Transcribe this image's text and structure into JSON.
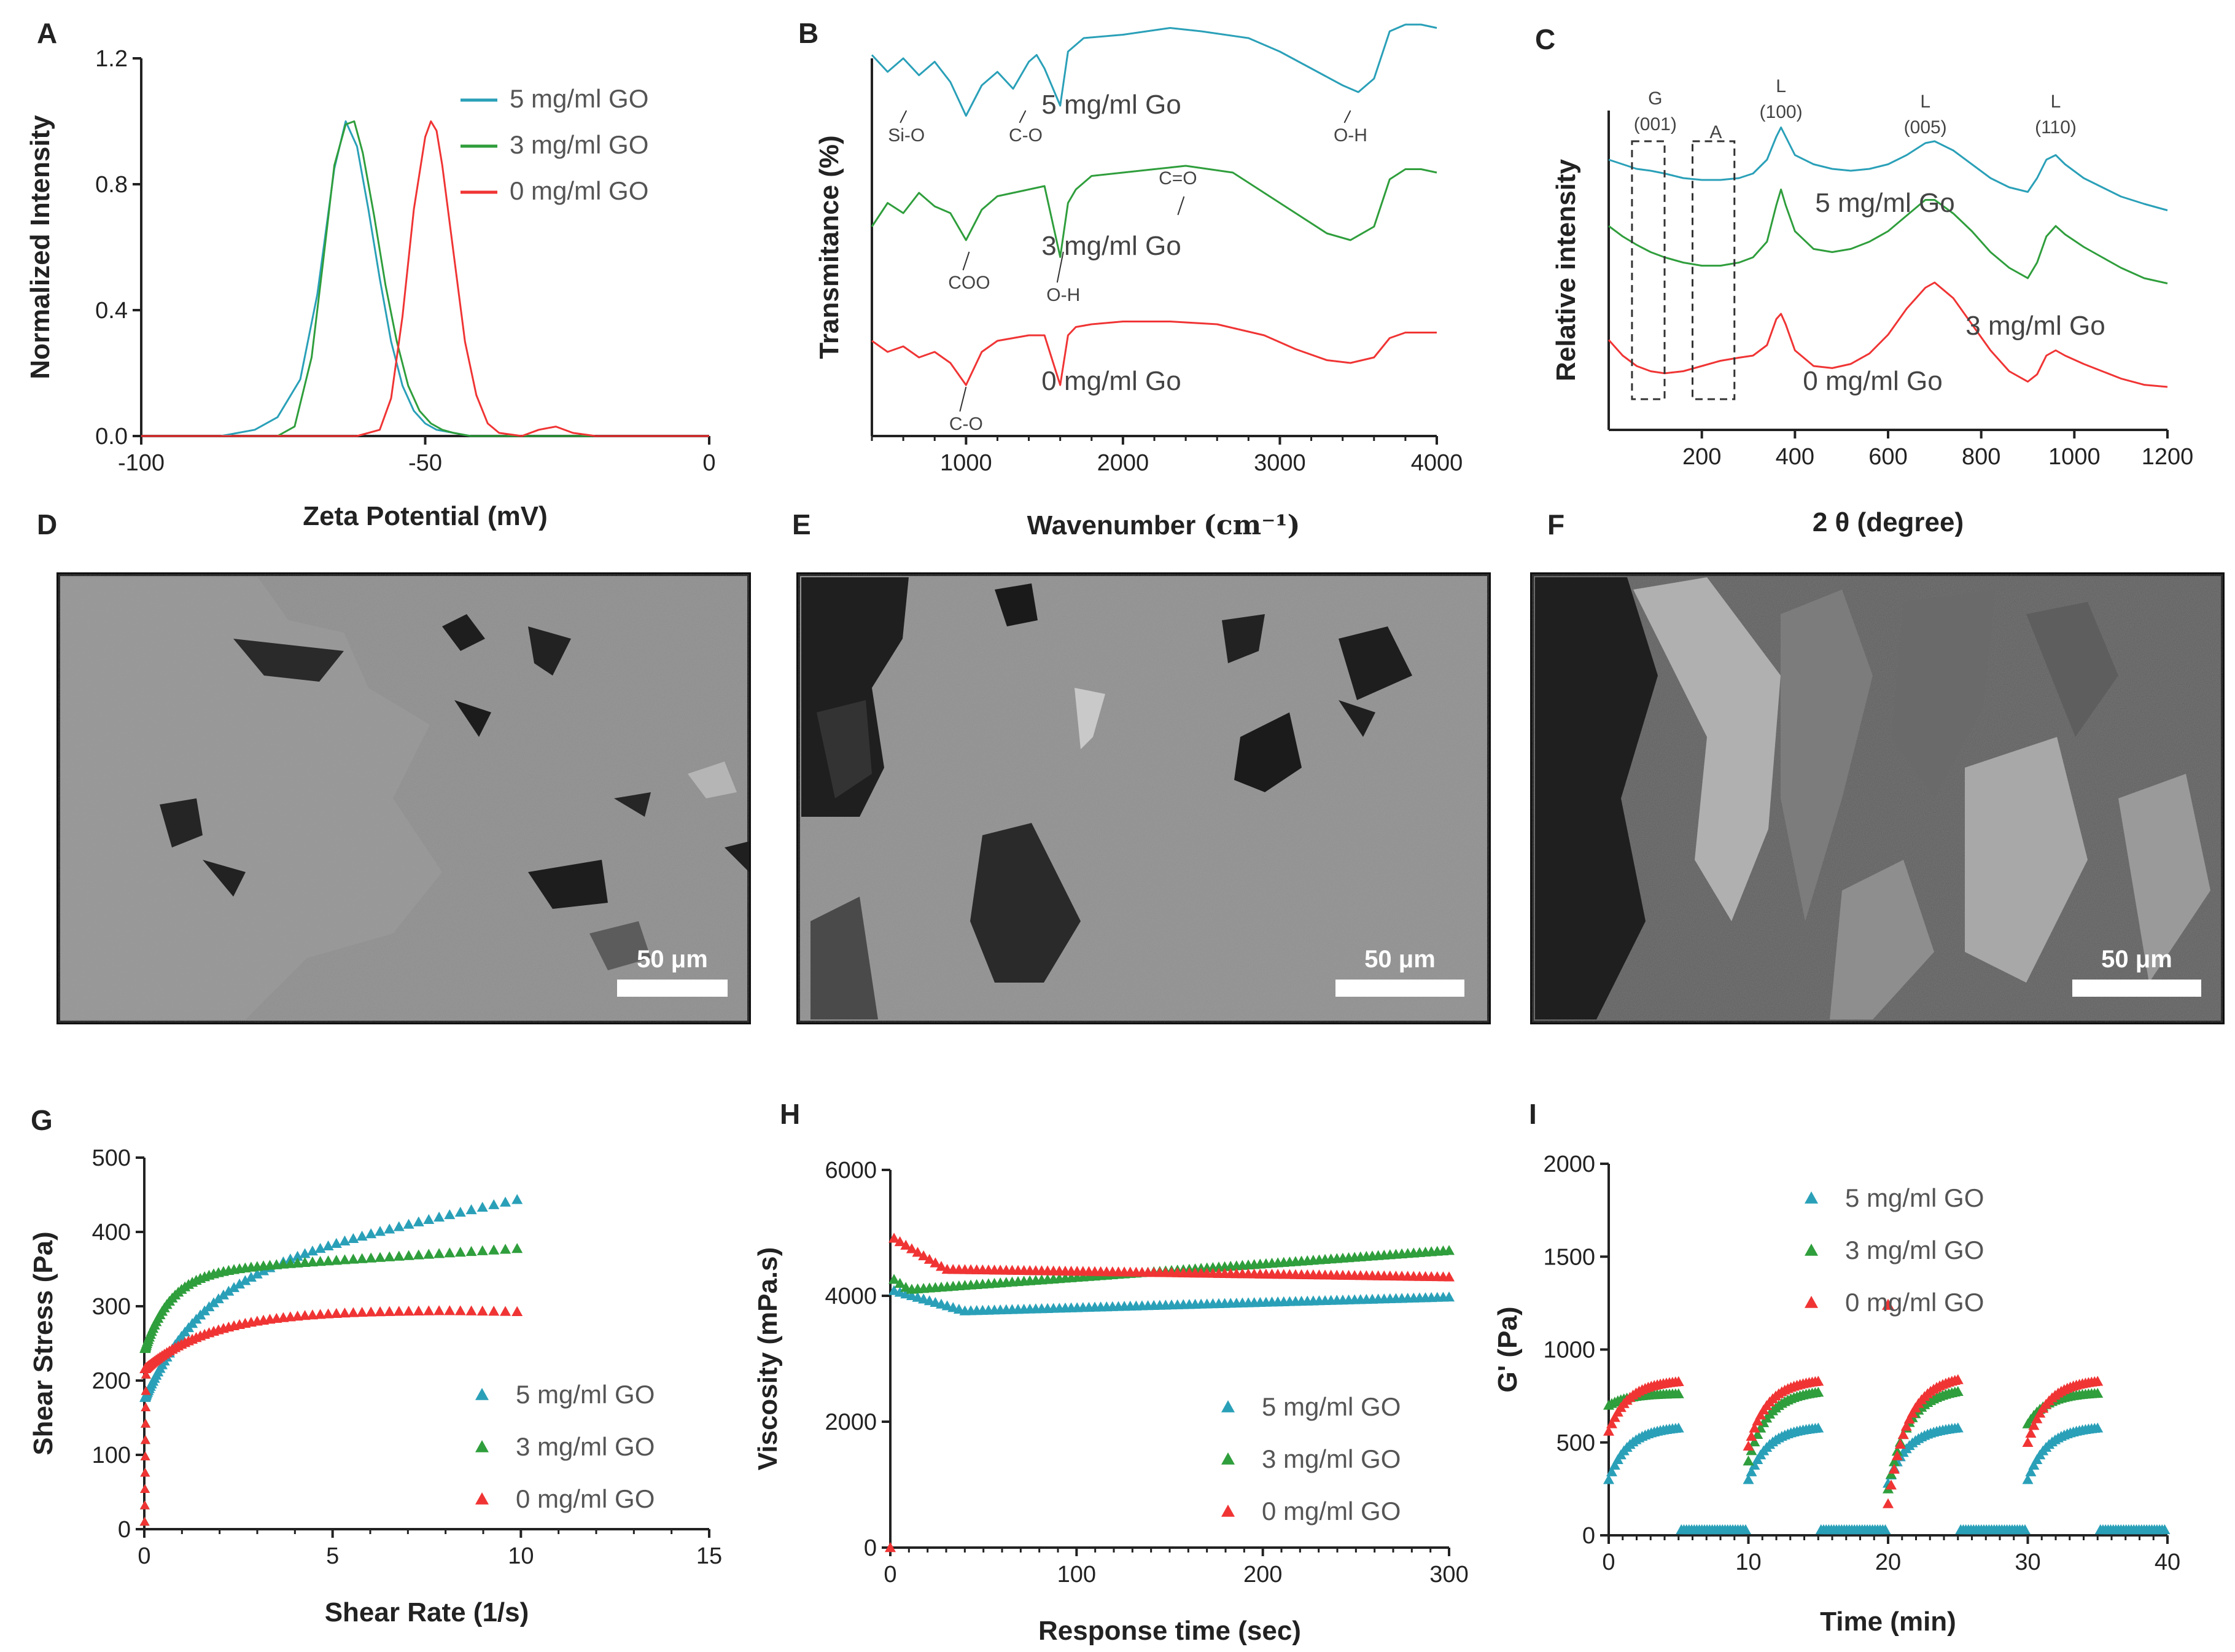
{
  "colors": {
    "teal": "#2aa0b8",
    "green": "#2f9e3c",
    "red": "#f03434",
    "axis": "#222222",
    "sem_bg": "#7a7a7a"
  },
  "panels": {
    "A": {
      "label": "A"
    },
    "B": {
      "label": "B"
    },
    "C": {
      "label": "C"
    },
    "D": {
      "label": "D",
      "scale_bar": "50 μm"
    },
    "E": {
      "label": "E",
      "scale_bar": "50 μm"
    },
    "F": {
      "label": "F",
      "scale_bar": "50 μm"
    },
    "G": {
      "label": "G"
    },
    "H": {
      "label": "H"
    },
    "I": {
      "label": "I"
    }
  },
  "chart_data": [
    {
      "id": "A",
      "type": "line",
      "xlabel": "Zeta Potential (mV)",
      "ylabel": "Normalized Intensity",
      "xlim": [
        -100,
        0
      ],
      "ylim": [
        0,
        1.2
      ],
      "xticks": [
        -100,
        -50,
        0
      ],
      "yticks": [
        0.0,
        0.4,
        0.8,
        1.2
      ],
      "xtick_labels": [
        "-100",
        "-50",
        "0"
      ],
      "ytick_labels": [
        "0.0",
        "0.4",
        "0.8",
        "1.2"
      ],
      "series": [
        {
          "name": "5 mg/ml GO",
          "color": "teal",
          "x": [
            -100,
            -86,
            -80,
            -76,
            -72,
            -69,
            -66,
            -64,
            -62,
            -60,
            -58,
            -56,
            -54,
            -52,
            -50,
            -48,
            -45,
            -42,
            -38,
            -30,
            0
          ],
          "y": [
            0,
            0,
            0.02,
            0.06,
            0.18,
            0.45,
            0.85,
            1.0,
            0.92,
            0.72,
            0.5,
            0.3,
            0.16,
            0.08,
            0.04,
            0.02,
            0.01,
            0.0,
            0.0,
            0.0,
            0.0
          ]
        },
        {
          "name": "3 mg/ml GO",
          "color": "green",
          "x": [
            -100,
            -76,
            -73,
            -70,
            -68,
            -66,
            -64,
            -62.5,
            -61,
            -59,
            -57,
            -55,
            -53,
            -51,
            -49,
            -47,
            -45,
            -42,
            0
          ],
          "y": [
            0,
            0,
            0.03,
            0.25,
            0.55,
            0.86,
            0.99,
            1.0,
            0.9,
            0.7,
            0.48,
            0.3,
            0.16,
            0.08,
            0.04,
            0.02,
            0.01,
            0.0,
            0.0
          ]
        },
        {
          "name": "0 mg/ml GO",
          "color": "red",
          "x": [
            -100,
            -62,
            -58,
            -56,
            -54,
            -52,
            -50,
            -49,
            -48,
            -47,
            -45,
            -43,
            -41,
            -39,
            -37,
            -33,
            -30,
            -27,
            -24,
            -20,
            0
          ],
          "y": [
            0,
            0,
            0.02,
            0.12,
            0.38,
            0.72,
            0.95,
            1.0,
            0.97,
            0.86,
            0.58,
            0.3,
            0.13,
            0.04,
            0.01,
            0.0,
            0.02,
            0.03,
            0.01,
            0.0,
            0.0
          ]
        }
      ]
    },
    {
      "id": "B",
      "type": "line",
      "xlabel": "Wavenumber",
      "xlabel_unit": "(cm⁻¹)",
      "ylabel": "Transmitance (%)",
      "xlim": [
        400,
        4000
      ],
      "xticks": [
        1000,
        2000,
        3000,
        4000
      ],
      "xtick_labels": [
        "1000",
        "2000",
        "3000",
        "4000"
      ],
      "series": [
        {
          "name": "5 mg/ml Go",
          "color": "teal",
          "x": [
            400,
            500,
            600,
            700,
            800,
            900,
            1000,
            1100,
            1200,
            1300,
            1400,
            1450,
            1500,
            1600,
            1650,
            1750,
            2000,
            2300,
            2500,
            2800,
            3000,
            3200,
            3400,
            3500,
            3600,
            3700,
            3800,
            3900,
            4000
          ],
          "y": [
            0.55,
            0.3,
            0.5,
            0.25,
            0.45,
            0.15,
            -0.35,
            0.1,
            0.3,
            0.05,
            0.45,
            0.55,
            0.35,
            -0.2,
            0.6,
            0.8,
            0.85,
            0.95,
            0.9,
            0.8,
            0.6,
            0.35,
            0.1,
            0.0,
            0.2,
            0.9,
            1.0,
            1.0,
            0.95
          ]
        },
        {
          "name": "3 mg/ml Go",
          "color": "green",
          "x": [
            400,
            500,
            600,
            700,
            800,
            900,
            1000,
            1100,
            1200,
            1300,
            1400,
            1500,
            1600,
            1650,
            1700,
            1800,
            2000,
            2200,
            2400,
            2700,
            2900,
            3100,
            3300,
            3450,
            3600,
            3700,
            3800,
            3900,
            4000
          ],
          "y": [
            0.1,
            0.45,
            0.3,
            0.6,
            0.4,
            0.3,
            -0.1,
            0.35,
            0.55,
            0.6,
            0.65,
            0.7,
            -0.35,
            0.45,
            0.65,
            0.85,
            0.9,
            0.95,
            1.0,
            0.9,
            0.6,
            0.3,
            0.0,
            -0.1,
            0.1,
            0.8,
            0.95,
            0.95,
            0.9
          ]
        },
        {
          "name": "0 mg/ml Go",
          "color": "red",
          "x": [
            400,
            500,
            600,
            700,
            800,
            900,
            1000,
            1100,
            1200,
            1300,
            1400,
            1500,
            1600,
            1650,
            1700,
            1800,
            2000,
            2300,
            2600,
            2900,
            3100,
            3300,
            3450,
            3600,
            3700,
            3800,
            3900,
            4000
          ],
          "y": [
            0.5,
            0.3,
            0.4,
            0.2,
            0.3,
            0.1,
            -0.3,
            0.3,
            0.5,
            0.55,
            0.6,
            0.6,
            -0.3,
            0.6,
            0.75,
            0.8,
            0.85,
            0.85,
            0.8,
            0.6,
            0.35,
            0.15,
            0.1,
            0.2,
            0.55,
            0.65,
            0.65,
            0.65
          ]
        }
      ],
      "annotations": {
        "teal": [
          {
            "text": "Si-O",
            "x": 620
          },
          {
            "text": "C-O",
            "x": 1380
          },
          {
            "text": "O-H",
            "x": 3450
          }
        ],
        "green": [
          {
            "text": "COO",
            "x": 1020
          },
          {
            "text": "O-H",
            "x": 1620
          },
          {
            "text": "C=O",
            "x": 2350
          }
        ],
        "red": [
          {
            "text": "C-O",
            "x": 1000
          }
        ]
      }
    },
    {
      "id": "C",
      "type": "line",
      "xlabel": "2 θ (degree)",
      "ylabel": "Relative intensity",
      "xlim": [
        0,
        1200
      ],
      "xticks": [
        200,
        400,
        600,
        800,
        1000,
        1200
      ],
      "xtick_labels": [
        "200",
        "400",
        "600",
        "800",
        "1000",
        "1200"
      ],
      "series": [
        {
          "name": "5 mg/ml Go",
          "color": "teal",
          "x": [
            0,
            30,
            60,
            90,
            120,
            160,
            200,
            240,
            280,
            310,
            340,
            360,
            370,
            380,
            400,
            440,
            480,
            520,
            560,
            600,
            640,
            680,
            700,
            740,
            780,
            820,
            860,
            900,
            920,
            940,
            960,
            980,
            1020,
            1060,
            1100,
            1150,
            1200
          ],
          "y": [
            0.6,
            0.55,
            0.5,
            0.48,
            0.45,
            0.4,
            0.38,
            0.38,
            0.4,
            0.45,
            0.6,
            0.85,
            0.95,
            0.85,
            0.65,
            0.55,
            0.5,
            0.48,
            0.5,
            0.55,
            0.65,
            0.78,
            0.8,
            0.7,
            0.55,
            0.4,
            0.3,
            0.25,
            0.4,
            0.6,
            0.65,
            0.55,
            0.4,
            0.3,
            0.2,
            0.12,
            0.05
          ]
        },
        {
          "name": "3 mg/ml Go",
          "color": "green",
          "x": [
            0,
            30,
            60,
            90,
            120,
            160,
            200,
            240,
            280,
            310,
            340,
            360,
            370,
            380,
            400,
            440,
            480,
            520,
            560,
            600,
            640,
            680,
            700,
            740,
            780,
            820,
            860,
            900,
            920,
            940,
            960,
            980,
            1020,
            1060,
            1100,
            1150,
            1200
          ],
          "y": [
            0.6,
            0.5,
            0.42,
            0.35,
            0.3,
            0.25,
            0.22,
            0.22,
            0.25,
            0.3,
            0.45,
            0.8,
            0.95,
            0.8,
            0.55,
            0.38,
            0.35,
            0.38,
            0.45,
            0.55,
            0.7,
            0.85,
            0.85,
            0.72,
            0.55,
            0.35,
            0.2,
            0.1,
            0.25,
            0.5,
            0.6,
            0.52,
            0.4,
            0.3,
            0.2,
            0.1,
            0.05
          ]
        },
        {
          "name": "0 mg/ml Go",
          "color": "red",
          "x": [
            0,
            30,
            60,
            90,
            120,
            160,
            200,
            240,
            280,
            310,
            340,
            360,
            370,
            380,
            400,
            440,
            480,
            520,
            560,
            600,
            640,
            680,
            700,
            740,
            780,
            820,
            860,
            900,
            920,
            940,
            960,
            980,
            1020,
            1060,
            1100,
            1150,
            1200
          ],
          "y": [
            0.45,
            0.3,
            0.2,
            0.15,
            0.13,
            0.15,
            0.2,
            0.25,
            0.28,
            0.3,
            0.4,
            0.65,
            0.7,
            0.6,
            0.35,
            0.2,
            0.18,
            0.22,
            0.32,
            0.5,
            0.75,
            0.95,
            1.0,
            0.85,
            0.6,
            0.35,
            0.15,
            0.05,
            0.12,
            0.3,
            0.35,
            0.3,
            0.22,
            0.15,
            0.08,
            0.02,
            0.0
          ]
        }
      ],
      "peak_labels": [
        {
          "line1": "G",
          "line2": "(001)",
          "x": 100
        },
        {
          "line1": "A",
          "line2": "",
          "x": 230
        },
        {
          "line1": "L",
          "line2": "(100)",
          "x": 370
        },
        {
          "line1": "L",
          "line2": "(005)",
          "x": 680
        },
        {
          "line1": "L",
          "line2": "(110)",
          "x": 960
        }
      ],
      "boxes": [
        [
          50,
          120
        ],
        [
          180,
          270
        ]
      ]
    },
    {
      "id": "G",
      "type": "scatter",
      "xlabel": "Shear Rate (1/s)",
      "ylabel": "Shear Stress (Pa)",
      "xlim": [
        0,
        15
      ],
      "ylim": [
        0,
        500
      ],
      "xticks": [
        0,
        5,
        10,
        15
      ],
      "yticks": [
        0,
        100,
        200,
        300,
        400,
        500
      ],
      "xtick_labels": [
        "0",
        "5",
        "10",
        "15"
      ],
      "ytick_labels": [
        "0",
        "100",
        "200",
        "300",
        "400",
        "500"
      ],
      "series": [
        {
          "name": "5 mg/ml GO",
          "color": "teal",
          "model": {
            "kind": "g",
            "a": 175,
            "b": 230,
            "p": 0.5,
            "c": 240,
            "k": 3
          }
        },
        {
          "name": "3 mg/ml GO",
          "color": "green",
          "model": {
            "kind": "g",
            "a": 240,
            "b": 95,
            "p": 0.35,
            "c": 250,
            "k": 4
          }
        },
        {
          "name": "0 mg/ml GO",
          "color": "red",
          "model": {
            "kind": "g",
            "a": 215,
            "b": 60,
            "p": 0.5,
            "c": 230,
            "k": 3
          }
        }
      ],
      "x_range": [
        0.02,
        9.9
      ]
    },
    {
      "id": "H",
      "type": "scatter",
      "xlabel": "Response time (sec)",
      "ylabel": "Viscosity (mPa.s)",
      "xlim": [
        0,
        300
      ],
      "ylim": [
        0,
        6000
      ],
      "xticks": [
        0,
        100,
        200,
        300
      ],
      "yticks": [
        0,
        2000,
        4000,
        6000
      ],
      "xtick_labels": [
        "0",
        "100",
        "200",
        "300"
      ],
      "ytick_labels": [
        "0",
        "2000",
        "4000",
        "6000"
      ],
      "series": [
        {
          "name": "5 mg/ml GO",
          "color": "teal",
          "start": 4100,
          "dip": 3760,
          "dip_t": 40,
          "end": 3980
        },
        {
          "name": "3 mg/ml GO",
          "color": "green",
          "start": 4300,
          "dip": 4100,
          "dip_t": 10,
          "end": 4720
        },
        {
          "name": "0 mg/ml GO",
          "color": "red",
          "start": 4950,
          "dip": 4420,
          "dip_t": 30,
          "end": 4300
        }
      ]
    },
    {
      "id": "I",
      "type": "scatter",
      "xlabel": "Time (min)",
      "ylabel": "G' (Pa)",
      "xlim": [
        0,
        40
      ],
      "ylim": [
        0,
        2000
      ],
      "xticks": [
        0,
        10,
        20,
        30,
        40
      ],
      "yticks": [
        0,
        500,
        1000,
        1500,
        2000
      ],
      "xtick_labels": [
        "0",
        "10",
        "20",
        "30",
        "40"
      ],
      "ytick_labels": [
        "0",
        "500",
        "1000",
        "1500",
        "2000"
      ],
      "series": [
        {
          "name": "5 mg/ml GO",
          "color": "teal",
          "start": [
            300,
            300,
            280,
            300
          ],
          "plateau": 570
        },
        {
          "name": "3 mg/ml GO",
          "color": "green",
          "start": [
            700,
            400,
            250,
            600
          ],
          "plateau": 760
        },
        {
          "name": "0 mg/ml GO",
          "color": "red",
          "start": [
            560,
            480,
            170,
            500
          ],
          "plateau": 820
        }
      ],
      "outlier": {
        "color": "red",
        "x": 20,
        "y": 1240
      },
      "rest_level": 30
    }
  ]
}
